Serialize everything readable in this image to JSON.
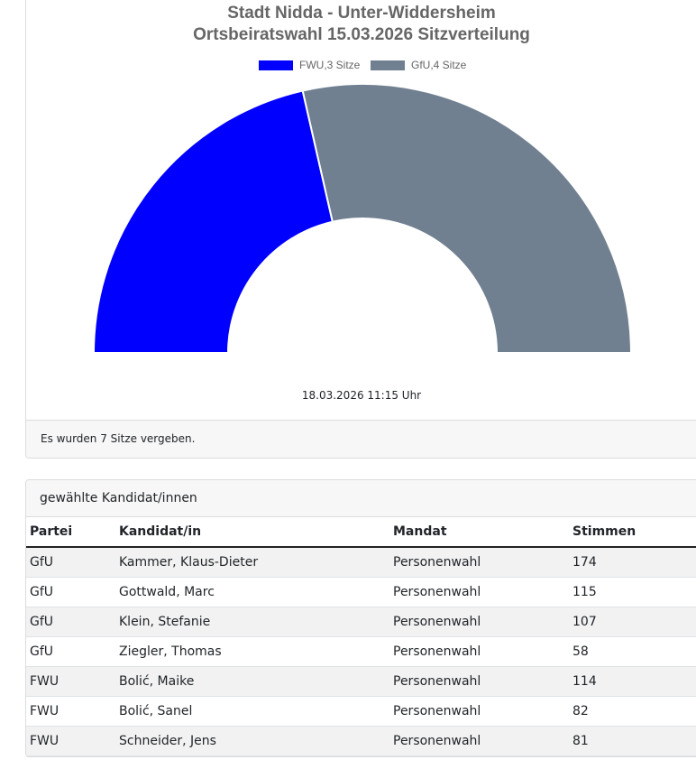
{
  "chart_data": {
    "type": "pie",
    "variant": "half-donut",
    "title": [
      "Stadt Nidda - Unter-Widdersheim",
      "Ortsbeiratswahl 15.03.2026 Sitzverteilung"
    ],
    "legend_position": "top",
    "series": [
      {
        "name": "FWU,3 Sitze",
        "label": "FWU",
        "value": 3,
        "color": "#0000ff"
      },
      {
        "name": "GfU,4 Sitze",
        "label": "GfU",
        "value": 4,
        "color": "#708090"
      }
    ],
    "timestamp": "18.03.2026 11:15 Uhr"
  },
  "footer": "Es wurden 7 Sitze vergeben.",
  "candidates": {
    "header": "gewählte Kandidat/innen",
    "columns": [
      "Partei",
      "Kandidat/in",
      "Mandat",
      "Stimmen"
    ],
    "rows": [
      [
        "GfU",
        "Kammer, Klaus-Dieter",
        "Personenwahl",
        "174"
      ],
      [
        "GfU",
        "Gottwald, Marc",
        "Personenwahl",
        "115"
      ],
      [
        "GfU",
        "Klein, Stefanie",
        "Personenwahl",
        "107"
      ],
      [
        "GfU",
        "Ziegler, Thomas",
        "Personenwahl",
        "58"
      ],
      [
        "FWU",
        "Bolić, Maike",
        "Personenwahl",
        "114"
      ],
      [
        "FWU",
        "Bolić, Sanel",
        "Personenwahl",
        "82"
      ],
      [
        "FWU",
        "Schneider, Jens",
        "Personenwahl",
        "81"
      ]
    ]
  }
}
